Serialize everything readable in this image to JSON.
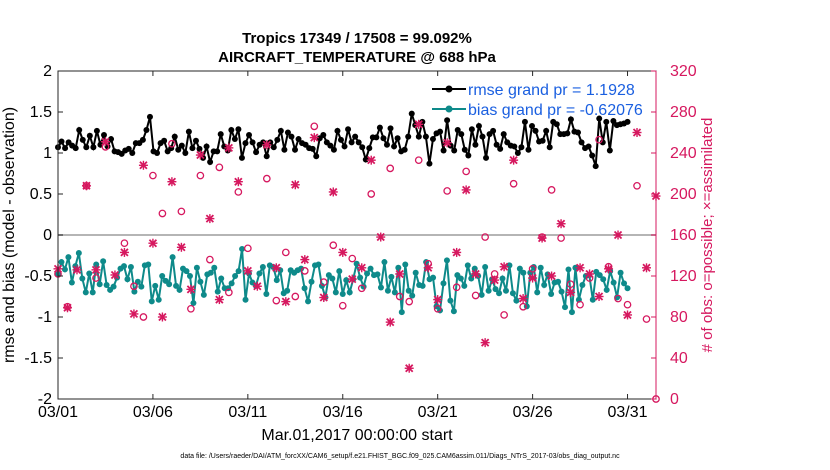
{
  "chart_data": {
    "type": "line",
    "title": "Tropics 17349 / 17508 = 99.092%",
    "subtitle": "AIRCRAFT_TEMPERATURE @ 688 hPa",
    "xlabel": "Mar.01,2017 00:00:00 start",
    "ylabel": "rmse and bias (model - observation)",
    "ylabel_right": "# of obs: o=possible; ×=assimilated",
    "footnote": "data file: /Users/raeder/DAI/ATM_forcXX/CAM6_setup/f.e21.FHIST_BGC.f09_025.CAM6assim.011/Diags_NTrS_2017-03/obs_diag_output.nc",
    "xlim": [
      0,
      31.5
    ],
    "ylim": [
      -2,
      2
    ],
    "ylim_right": [
      0,
      320
    ],
    "x_ticks": [
      0,
      5,
      10,
      15,
      20,
      25,
      30
    ],
    "x_tick_labels": [
      "03/01",
      "03/06",
      "03/11",
      "03/16",
      "03/21",
      "03/26",
      "03/31"
    ],
    "y_ticks": [
      -2,
      -1.5,
      -1,
      -0.5,
      0,
      0.5,
      1,
      1.5,
      2
    ],
    "y_tick_labels": [
      "-2",
      "-1.5",
      "-1",
      "-0.5",
      "0",
      "0.5",
      "1",
      "1.5",
      "2"
    ],
    "y_ticks_right": [
      0,
      40,
      80,
      120,
      160,
      200,
      240,
      280,
      320
    ],
    "y_tick_labels_right": [
      "0",
      "40",
      "80",
      "120",
      "160",
      "200",
      "240",
      "280",
      "320"
    ],
    "legend_position": "top-right",
    "series": [
      {
        "name": "rmse grand pr = 1.1928",
        "color": "#000000",
        "marker": "circle",
        "values": [
          1.07,
          1.14,
          1.06,
          1.13,
          1.09,
          1.06,
          1.28,
          1.16,
          1.07,
          1.21,
          1.07,
          1.27,
          1.1,
          1.22,
          1.08,
          1.17,
          1.02,
          1.01,
          0.99,
          1.03,
          1.05,
          1.0,
          1.12,
          1.12,
          1.16,
          1.28,
          1.44,
          1.02,
          1.0,
          1.12,
          1.15,
          1.02,
          1.06,
          1.2,
          1.04,
          1.09,
          1.0,
          1.26,
          1.06,
          1.15,
          1.05,
          0.94,
          1.08,
          0.89,
          1.02,
          1.02,
          1.23,
          1.08,
          1.03,
          1.28,
          1.17,
          1.29,
          0.94,
          1.12,
          1.22,
          1.13,
          1.01,
          1.1,
          1.13,
          0.96,
          1.13,
          1.07,
          1.16,
          1.27,
          1.04,
          1.25,
          1.2,
          1.04,
          1.17,
          1.12,
          1.1,
          1.06,
          1.05,
          0.96,
          1.18,
          1.22,
          1.13,
          1.09,
          1.04,
          1.27,
          1.16,
          1.08,
          1.29,
          1.13,
          1.2,
          1.13,
          1.07,
          0.92,
          1.06,
          1.19,
          1.19,
          1.31,
          1.18,
          1.1,
          1.3,
          1.08,
          1.18,
          1.02,
          1.04,
          1.2,
          1.48,
          1.34,
          1.2,
          1.38,
          1.2,
          0.87,
          1.17,
          1.24,
          1.26,
          1.03,
          1.4,
          1.09,
          1.03,
          1.28,
          1.23,
          1.04,
          0.97,
          1.29,
          1.1,
          1.33,
          1.2,
          0.94,
          1.23,
          1.27,
          1.1,
          1.05,
          1.23,
          1.13,
          1.09,
          1.08,
          1.0,
          1.07,
          1.38,
          1.04,
          1.33,
          1.27,
          1.14,
          1.15,
          1.27,
          1.07,
          1.38,
          1.35,
          1.23,
          1.23,
          1.24,
          1.41,
          1.26,
          1.25,
          1.13,
          1.06,
          1.08,
          0.97,
          0.84,
          1.42,
          1.13,
          1.38,
          1.03,
          1.39,
          1.34,
          1.35,
          1.36,
          1.38
        ]
      },
      {
        "name": "bias grand pr = -0.62076",
        "color": "#0e8a8a",
        "marker": "circle",
        "values": [
          -0.48,
          -0.33,
          -0.42,
          -0.27,
          -0.58,
          -0.38,
          -0.22,
          -0.53,
          -0.7,
          -0.47,
          -0.7,
          -0.36,
          -0.6,
          -0.32,
          -0.61,
          -0.67,
          -0.63,
          -0.52,
          -0.41,
          -0.38,
          -0.54,
          -0.39,
          -0.69,
          -0.57,
          -0.63,
          -0.37,
          -0.36,
          -0.81,
          -0.62,
          -0.79,
          -0.5,
          -0.56,
          -0.6,
          -0.27,
          -0.62,
          -0.67,
          -0.41,
          -0.44,
          -0.5,
          -0.83,
          -0.4,
          -0.57,
          -0.73,
          -0.48,
          -0.46,
          -0.4,
          -0.69,
          -0.53,
          -0.65,
          -0.65,
          -0.59,
          -0.5,
          -0.44,
          -0.17,
          -0.79,
          -0.47,
          -0.58,
          -0.62,
          -0.47,
          -0.39,
          -0.72,
          -0.37,
          -0.39,
          -0.55,
          -0.43,
          -0.71,
          -0.68,
          -0.43,
          -0.46,
          -0.43,
          -0.41,
          -0.65,
          -0.81,
          -0.57,
          -0.37,
          -0.36,
          -0.62,
          -0.76,
          -0.49,
          -0.53,
          -0.7,
          -0.44,
          -0.72,
          -0.55,
          -0.7,
          -0.54,
          -0.35,
          -0.52,
          -0.63,
          -0.47,
          -0.41,
          -0.49,
          -0.48,
          -0.64,
          -0.33,
          -0.68,
          -0.51,
          -0.7,
          -0.4,
          -0.94,
          -0.36,
          -0.68,
          -0.74,
          -0.46,
          -0.61,
          -0.62,
          -0.33,
          -0.54,
          -0.52,
          -0.87,
          -0.92,
          -0.59,
          -0.31,
          -0.8,
          -0.93,
          -0.49,
          -0.53,
          -0.62,
          -0.37,
          -0.53,
          -0.41,
          -0.5,
          -0.73,
          -0.39,
          -0.68,
          -0.54,
          -0.66,
          -0.71,
          -0.53,
          -0.68,
          -0.37,
          -0.71,
          -0.8,
          -0.41,
          -0.46,
          -0.87,
          -0.46,
          -0.39,
          -0.7,
          -0.4,
          -0.61,
          -0.48,
          -0.72,
          -0.58,
          -0.57,
          -0.69,
          -0.88,
          -0.42,
          -0.94,
          -0.4,
          -0.79,
          -0.61,
          -0.5,
          -0.49,
          -0.79,
          -0.45,
          -0.49,
          -0.54,
          -0.67,
          -0.44,
          -0.58,
          -0.76,
          -0.46,
          -0.59,
          -0.65
        ]
      },
      {
        "name": "# of obs possible",
        "color": "#d6185f",
        "marker": "circle-open",
        "axis": "right",
        "values": [
          [
            0.0,
            122
          ],
          [
            0.5,
            90
          ],
          [
            1.5,
            208
          ],
          [
            2.0,
            118
          ],
          [
            2.5,
            246
          ],
          [
            3.5,
            152
          ],
          [
            4.0,
            110
          ],
          [
            4.5,
            80
          ],
          [
            5.0,
            218
          ],
          [
            5.5,
            181
          ],
          [
            6.0,
            249
          ],
          [
            6.5,
            183
          ],
          [
            7.0,
            88
          ],
          [
            7.5,
            218
          ],
          [
            8.0,
            136
          ],
          [
            8.5,
            226
          ],
          [
            9.0,
            104
          ],
          [
            9.5,
            202
          ],
          [
            10.0,
            147
          ],
          [
            11.0,
            215
          ],
          [
            11.5,
            96
          ],
          [
            12.0,
            143
          ],
          [
            12.5,
            100
          ],
          [
            13.0,
            125
          ],
          [
            13.5,
            266
          ],
          [
            14.0,
            114
          ],
          [
            14.5,
            150
          ],
          [
            15.0,
            91
          ],
          [
            15.5,
            137
          ],
          [
            16.0,
            108
          ],
          [
            16.5,
            200
          ],
          [
            17.5,
            225
          ],
          [
            18.0,
            100
          ],
          [
            18.5,
            95
          ],
          [
            19.0,
            233
          ],
          [
            19.5,
            132
          ],
          [
            20.0,
            88
          ],
          [
            20.5,
            203
          ],
          [
            21.0,
            109
          ],
          [
            21.5,
            222
          ],
          [
            22.0,
            101
          ],
          [
            22.5,
            158
          ],
          [
            23.0,
            122
          ],
          [
            23.5,
            82
          ],
          [
            24.0,
            210
          ],
          [
            24.5,
            90
          ],
          [
            25.0,
            127
          ],
          [
            25.5,
            158
          ],
          [
            26.0,
            204
          ],
          [
            26.5,
            157
          ],
          [
            27.0,
            112
          ],
          [
            27.5,
            92
          ],
          [
            28.0,
            118
          ],
          [
            28.5,
            253
          ],
          [
            29.0,
            129
          ],
          [
            29.5,
            98
          ],
          [
            30.0,
            92
          ],
          [
            30.5,
            208
          ],
          [
            31.0,
            78
          ],
          [
            31.5,
            0
          ]
        ]
      },
      {
        "name": "# of obs assimilated",
        "color": "#d6185f",
        "marker": "x",
        "axis": "right",
        "values": [
          [
            0.0,
            127
          ],
          [
            0.5,
            89
          ],
          [
            1.0,
            126
          ],
          [
            1.5,
            208
          ],
          [
            2.0,
            126
          ],
          [
            2.5,
            251
          ],
          [
            3.0,
            121
          ],
          [
            3.5,
            143
          ],
          [
            4.0,
            83
          ],
          [
            4.5,
            228
          ],
          [
            5.0,
            152
          ],
          [
            5.5,
            80
          ],
          [
            6.0,
            212
          ],
          [
            6.5,
            148
          ],
          [
            7.0,
            107
          ],
          [
            7.5,
            238
          ],
          [
            8.0,
            176
          ],
          [
            8.5,
            97
          ],
          [
            9.0,
            245
          ],
          [
            9.5,
            212
          ],
          [
            10.0,
            125
          ],
          [
            10.5,
            110
          ],
          [
            11.0,
            248
          ],
          [
            11.5,
            128
          ],
          [
            12.0,
            95
          ],
          [
            12.5,
            209
          ],
          [
            13.0,
            136
          ],
          [
            13.5,
            255
          ],
          [
            14.0,
            99
          ],
          [
            14.5,
            202
          ],
          [
            15.0,
            143
          ],
          [
            15.5,
            117
          ],
          [
            16.0,
            128
          ],
          [
            16.5,
            233
          ],
          [
            17.0,
            158
          ],
          [
            17.5,
            75
          ],
          [
            18.0,
            122
          ],
          [
            18.5,
            30
          ],
          [
            19.0,
            268
          ],
          [
            19.5,
            128
          ],
          [
            20.0,
            97
          ],
          [
            20.5,
            250
          ],
          [
            21.0,
            143
          ],
          [
            21.5,
            204
          ],
          [
            22.0,
            122
          ],
          [
            22.5,
            55
          ],
          [
            23.0,
            116
          ],
          [
            23.5,
            129
          ],
          [
            24.0,
            233
          ],
          [
            24.5,
            98
          ],
          [
            25.0,
            118
          ],
          [
            25.5,
            157
          ],
          [
            26.0,
            120
          ],
          [
            26.5,
            171
          ],
          [
            27.0,
            104
          ],
          [
            27.5,
            128
          ],
          [
            28.0,
            122
          ],
          [
            28.5,
            100
          ],
          [
            29.0,
            127
          ],
          [
            29.5,
            160
          ],
          [
            30.0,
            82
          ],
          [
            30.5,
            260
          ],
          [
            31.0,
            128
          ],
          [
            31.5,
            198
          ]
        ]
      }
    ]
  }
}
